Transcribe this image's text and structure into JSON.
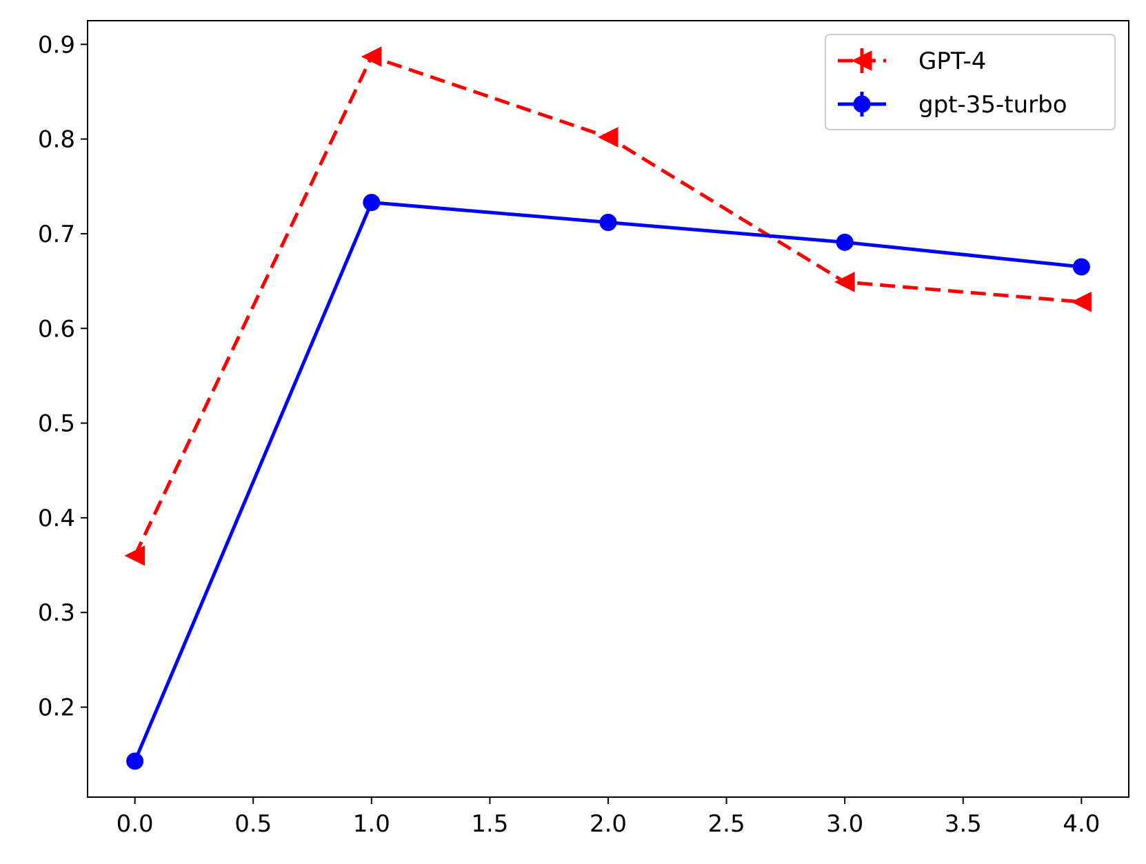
{
  "chart_data": {
    "type": "line",
    "title": "",
    "xlabel": "",
    "ylabel": "",
    "xlim": [
      -0.2,
      4.2
    ],
    "ylim": [
      0.105,
      0.925
    ],
    "x_ticks": [
      0.0,
      0.5,
      1.0,
      1.5,
      2.0,
      2.5,
      3.0,
      3.5,
      4.0
    ],
    "x_tick_labels": [
      "0.0",
      "0.5",
      "1.0",
      "1.5",
      "2.0",
      "2.5",
      "3.0",
      "3.5",
      "4.0"
    ],
    "y_ticks": [
      0.2,
      0.3,
      0.4,
      0.5,
      0.6,
      0.7,
      0.8,
      0.9
    ],
    "y_tick_labels": [
      "0.2",
      "0.3",
      "0.4",
      "0.5",
      "0.6",
      "0.7",
      "0.8",
      "0.9"
    ],
    "grid": false,
    "legend_position": "top-right",
    "series": [
      {
        "name": "GPT-4",
        "x": [
          0,
          1,
          2,
          3,
          4
        ],
        "values": [
          0.36,
          0.887,
          0.802,
          0.649,
          0.628
        ],
        "color": "#ff0000",
        "line_style": "dashed",
        "marker": "triangle-left"
      },
      {
        "name": "gpt-35-turbo",
        "x": [
          0,
          1,
          2,
          3,
          4
        ],
        "values": [
          0.143,
          0.733,
          0.712,
          0.691,
          0.665
        ],
        "color": "#0000ff",
        "line_style": "solid",
        "marker": "circle"
      }
    ]
  }
}
